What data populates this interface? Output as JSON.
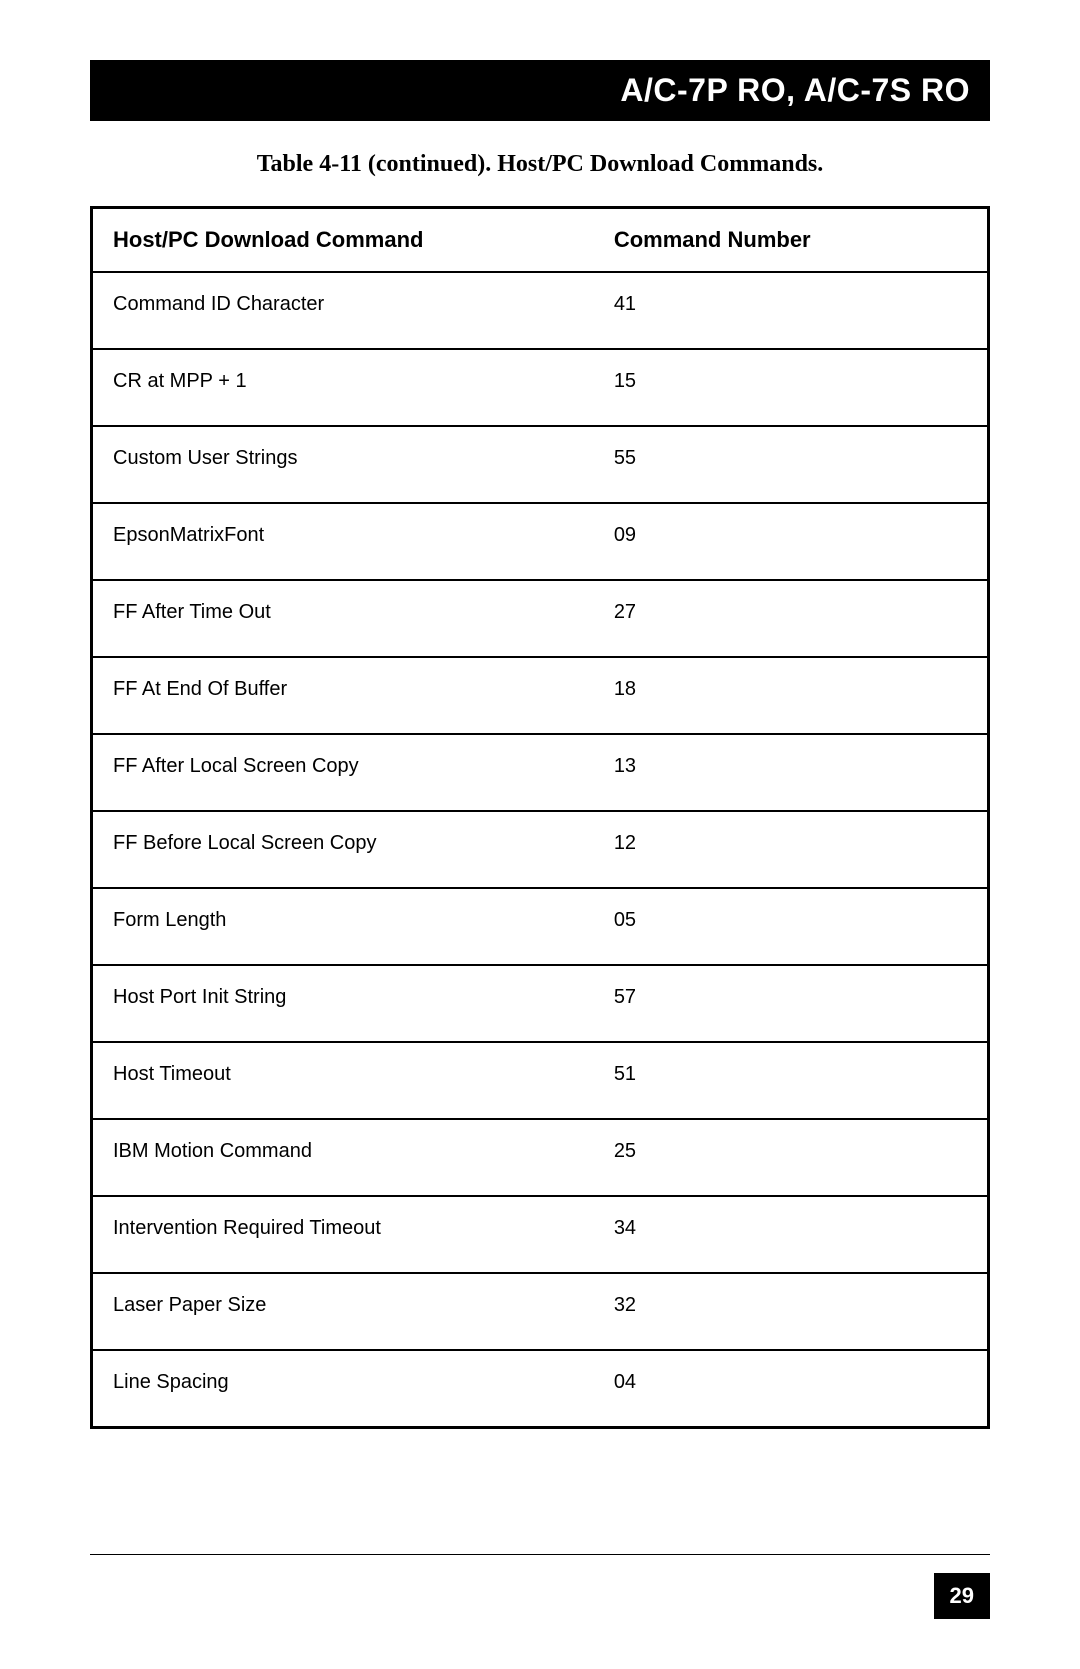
{
  "header": {
    "title": "A/C-7P RO, A/C-7S RO"
  },
  "table": {
    "caption": "Table 4-11 (continued). Host/PC Download Commands.",
    "columns": [
      "Host/PC Download Command",
      "Command Number"
    ],
    "rows": [
      [
        "Command ID Character",
        "41"
      ],
      [
        "CR at MPP + 1",
        "15"
      ],
      [
        "Custom User Strings",
        "55"
      ],
      [
        "EpsonMatrixFont",
        "09"
      ],
      [
        "FF  After Time Out",
        "27"
      ],
      [
        "FF  At  End Of Buffer",
        "18"
      ],
      [
        "FF After Local Screen Copy",
        "13"
      ],
      [
        "FF Before Local Screen Copy",
        "12"
      ],
      [
        "Form Length",
        "05"
      ],
      [
        "Host Port Init String",
        "57"
      ],
      [
        "Host Timeout",
        "51"
      ],
      [
        "IBM Motion Command",
        "25"
      ],
      [
        "Intervention Required Timeout",
        "34"
      ],
      [
        "Laser Paper Size",
        "32"
      ],
      [
        "Line Spacing",
        "04"
      ]
    ]
  },
  "footer": {
    "page_number": "29"
  },
  "styling": {
    "header_bg": "#000000",
    "header_fg": "#ffffff",
    "page_bg": "#ffffff",
    "border_color": "#000000",
    "header_title_fontsize": 32,
    "caption_fontsize": 24,
    "th_fontsize": 22,
    "td_fontsize": 20,
    "page_num_fontsize": 22
  }
}
